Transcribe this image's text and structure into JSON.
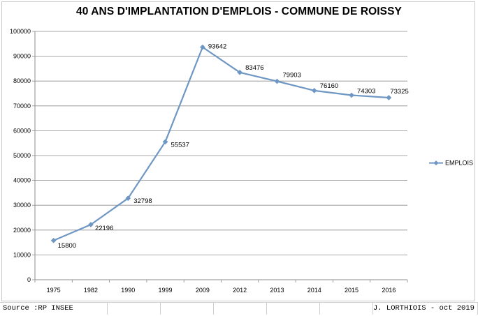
{
  "chart_data": {
    "type": "line",
    "title": "40 ANS D'IMPLANTATION D'EMPLOIS - COMMUNE DE ROISSY",
    "categories": [
      "1975",
      "1982",
      "1990",
      "1999",
      "2009",
      "2012",
      "2013",
      "2014",
      "2015",
      "2016"
    ],
    "series": [
      {
        "name": "EMPLOIS",
        "values": [
          15800,
          22196,
          32798,
          55537,
          93642,
          83476,
          79903,
          76160,
          74303,
          73325
        ]
      }
    ],
    "y_ticks": [
      "0",
      "10000",
      "20000",
      "30000",
      "40000",
      "50000",
      "60000",
      "70000",
      "80000",
      "90000",
      "100000"
    ],
    "ylim": [
      0,
      100000
    ],
    "grid": true,
    "legend_position": "right",
    "line_color": "#6f97c4",
    "marker": "diamond"
  },
  "footer": {
    "source": "Source :RP INSEE",
    "author": "J. LORTHIOIS - oct 2019"
  }
}
